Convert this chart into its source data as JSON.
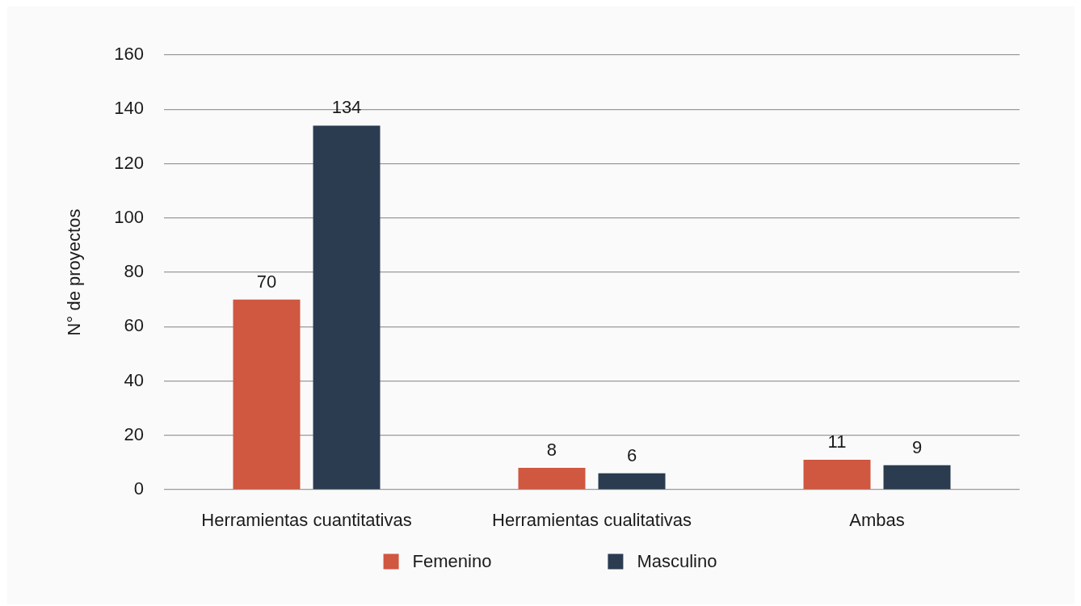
{
  "chart_data": {
    "type": "bar",
    "ylabel": "N° de proyectos",
    "categories": [
      "Herramientas cuantitativas",
      "Herramientas cualitativas",
      "Ambas"
    ],
    "series": [
      {
        "name": "Femenino",
        "color": "#d05740",
        "values": [
          70,
          8,
          11
        ]
      },
      {
        "name": "Masculino",
        "color": "#2b3c51",
        "values": [
          134,
          6,
          9
        ]
      }
    ],
    "ylim": [
      0,
      160
    ],
    "yticks": [
      0,
      20,
      40,
      60,
      80,
      100,
      120,
      140,
      160
    ],
    "grid": "y",
    "legend": "bottom",
    "data_labels": true
  }
}
